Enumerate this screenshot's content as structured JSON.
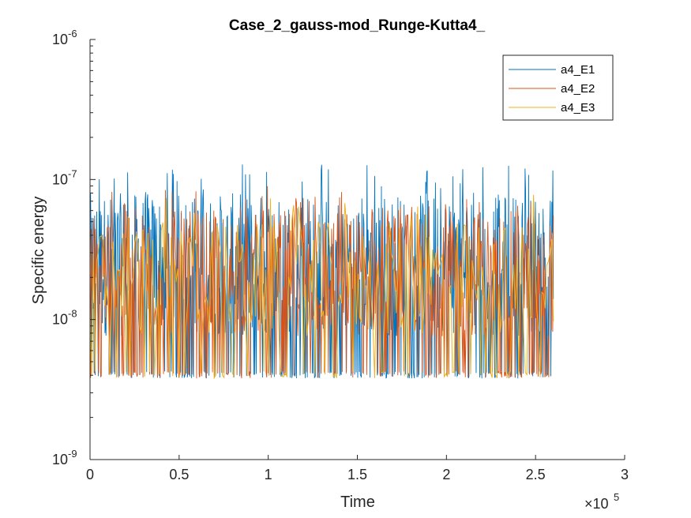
{
  "chart_data": {
    "type": "line",
    "title": "Case_2_gauss-mod_Runge-Kutta4_",
    "xlabel": "Time",
    "ylabel": "Specific energy",
    "x_exponent_label": "×10",
    "x_exponent": "5",
    "xlim": [
      0,
      3
    ],
    "ylim": [
      1e-09,
      1e-06
    ],
    "yscale": "log",
    "grid": false,
    "legend_position": "top-right",
    "x_ticks": [
      "0",
      "0.5",
      "1",
      "1.5",
      "2",
      "2.5",
      "3"
    ],
    "y_ticks": [
      {
        "base": "10",
        "exp": "-9"
      },
      {
        "base": "10",
        "exp": "-8"
      },
      {
        "base": "10",
        "exp": "-7"
      },
      {
        "base": "10",
        "exp": "-6"
      }
    ],
    "x_data_range": [
      0,
      2.6
    ],
    "series": [
      {
        "name": "a4_E1",
        "color": "#0072BD",
        "min": 3.8e-09,
        "max": 1.3e-07,
        "typical_high": 8e-08
      },
      {
        "name": "a4_E2",
        "color": "#D95319",
        "min": 3.8e-09,
        "max": 9e-08,
        "typical_high": 6e-08
      },
      {
        "name": "a4_E3",
        "color": "#EDB120",
        "min": 3.8e-09,
        "max": 8e-08,
        "typical_high": 5e-08
      }
    ]
  }
}
